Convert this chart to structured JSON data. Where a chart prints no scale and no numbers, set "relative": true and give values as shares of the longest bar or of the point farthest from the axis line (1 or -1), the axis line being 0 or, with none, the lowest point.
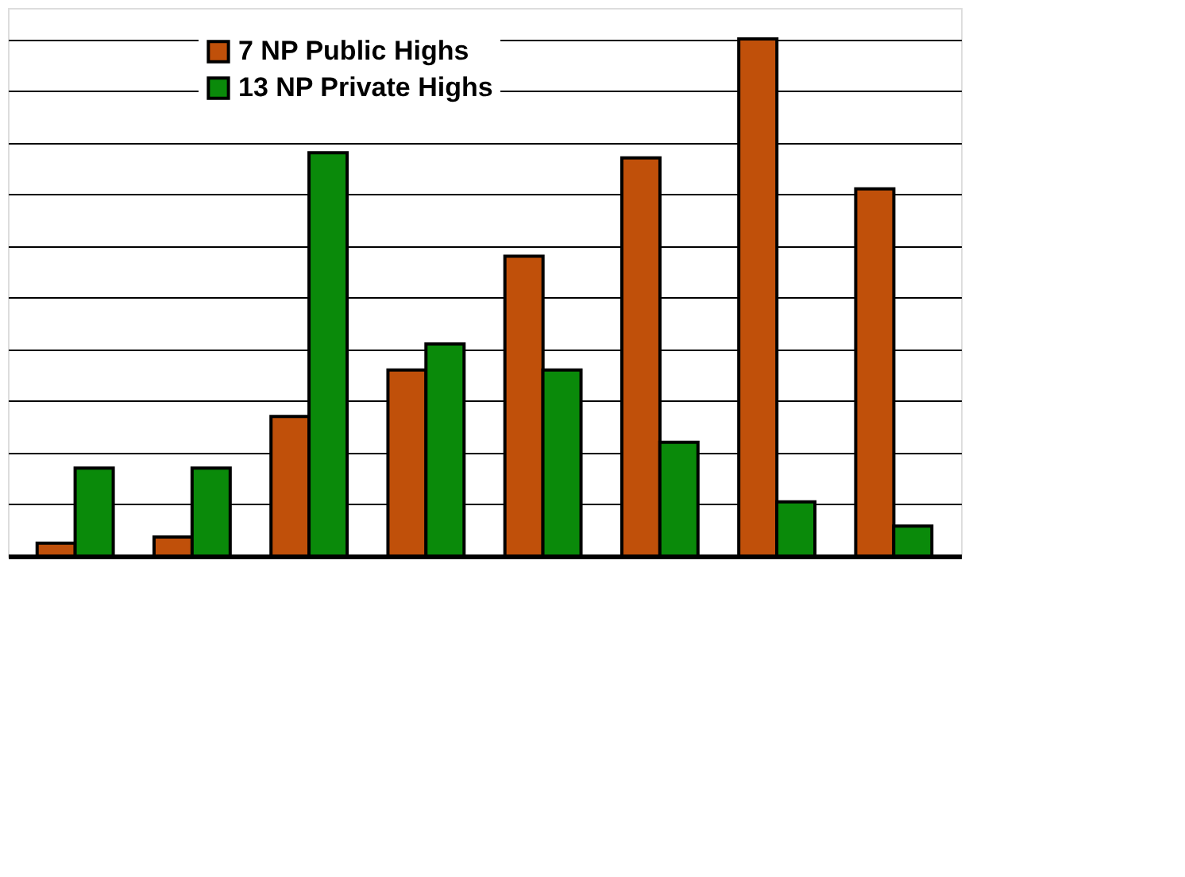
{
  "chart_data": {
    "type": "bar",
    "relative": true,
    "categories": [
      null,
      null,
      null,
      null,
      null,
      null,
      null,
      null
    ],
    "series": [
      {
        "name": "7 NP Public Highs",
        "color": "#c0500a",
        "values": [
          0.025,
          0.037,
          0.27,
          0.36,
          0.58,
          0.77,
          1,
          0.71
        ]
      },
      {
        "name": "13 NP Private Highs",
        "color": "#0a8a0a",
        "values": [
          0.17,
          0.17,
          0.78,
          0.41,
          0.36,
          0.22,
          0.105,
          0.058
        ]
      }
    ],
    "grid": "y",
    "legend": "top"
  }
}
